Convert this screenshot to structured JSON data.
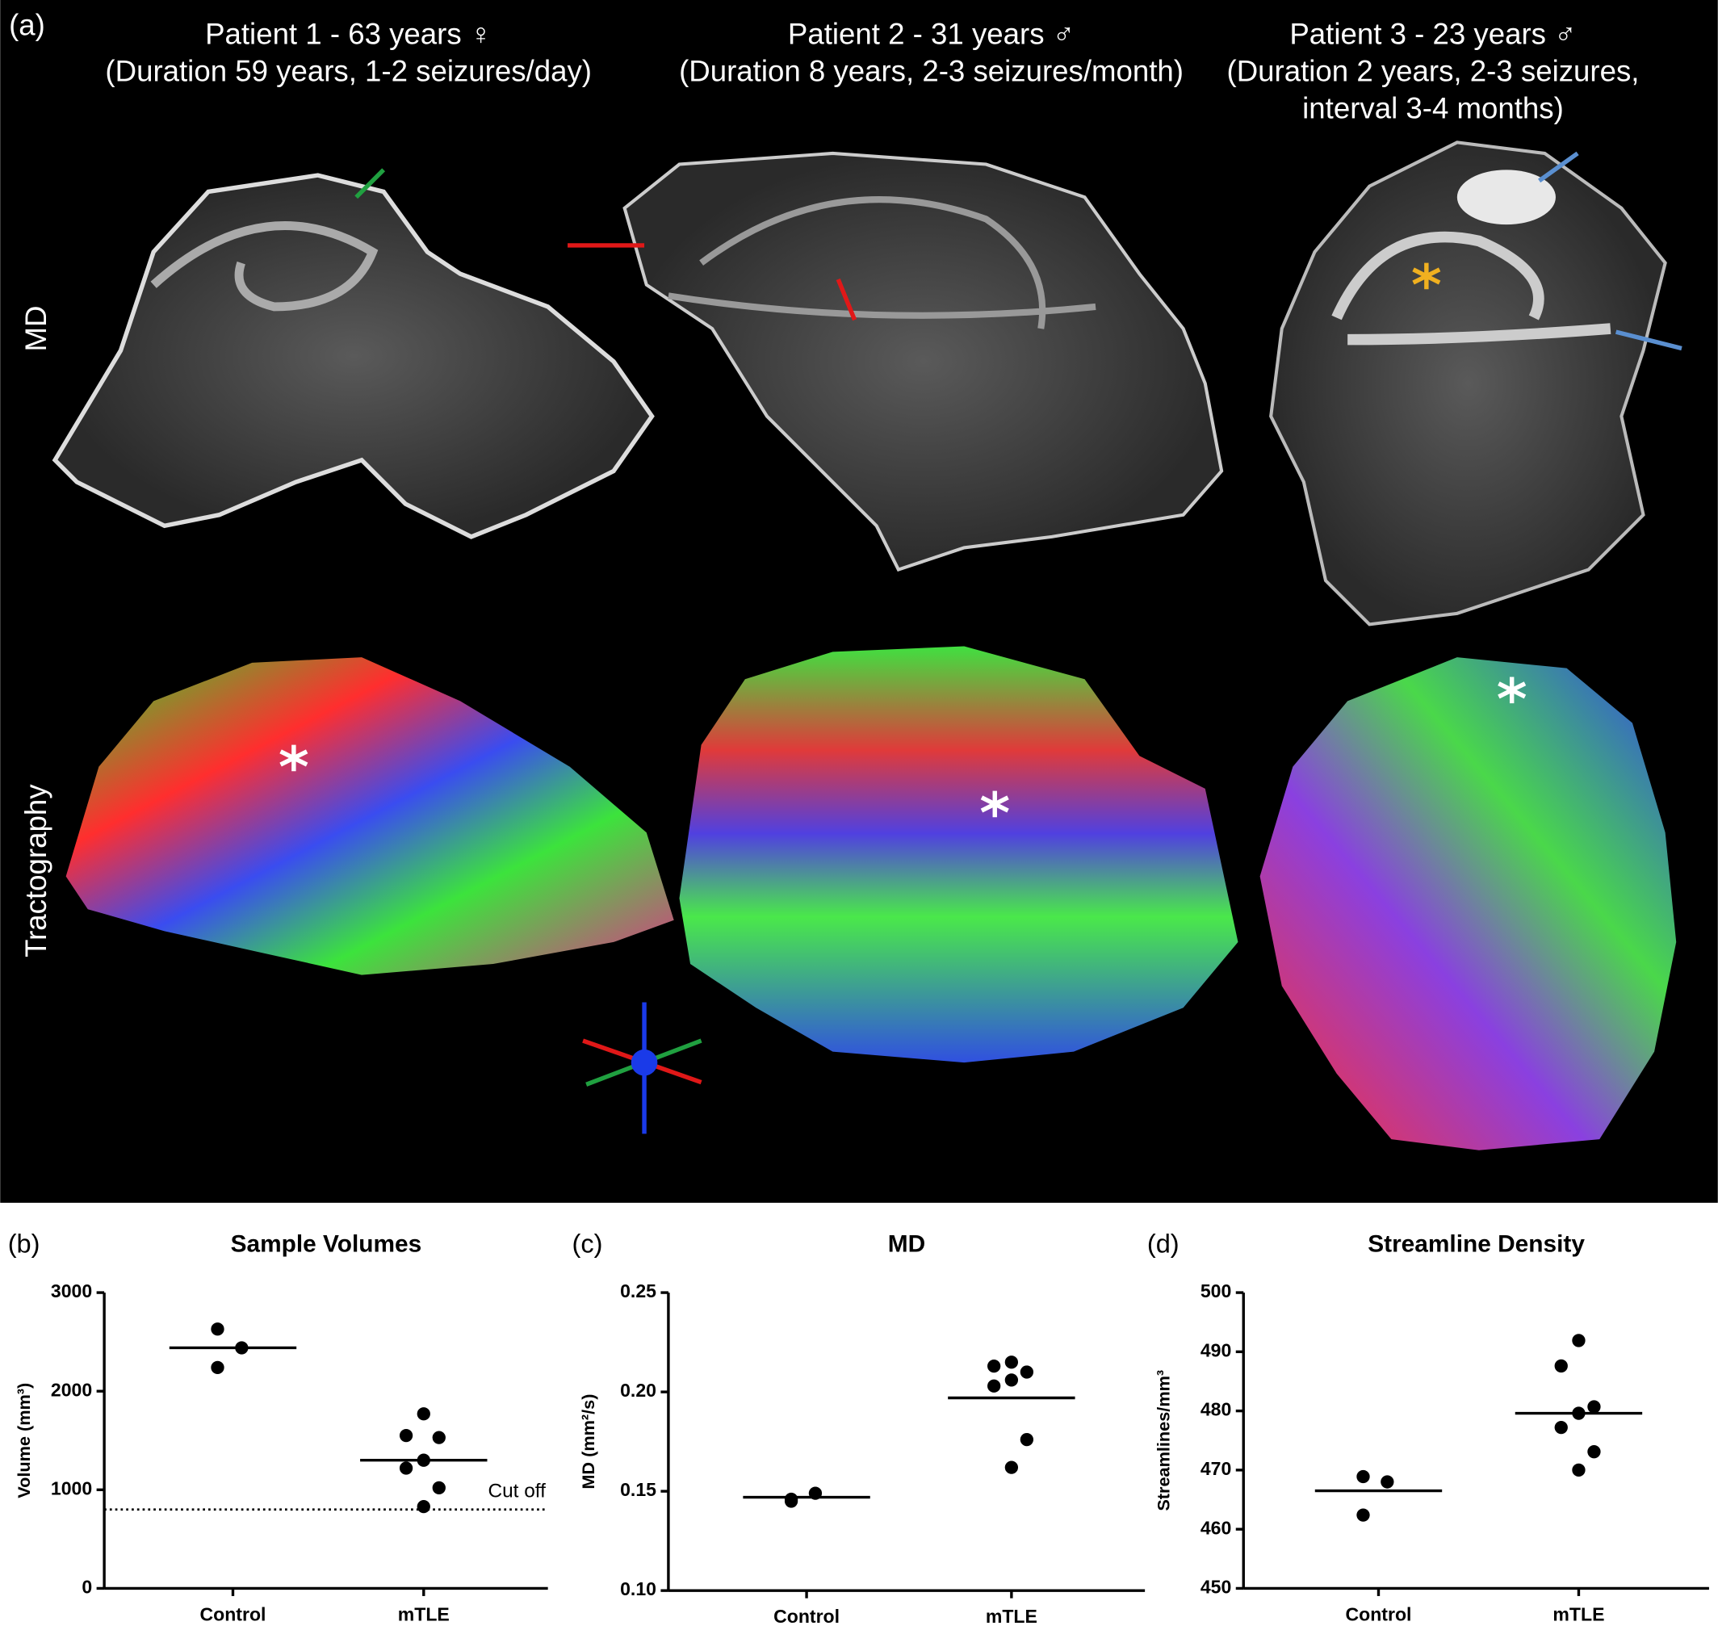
{
  "figure_a": {
    "panel_label": "(a)",
    "patients": [
      {
        "title": "Patient 1 - 63 years ♀",
        "details": [
          "(Duration 59 years, 1-2 seizures/day)"
        ]
      },
      {
        "title": "Patient 2 - 31 years ♂",
        "details": [
          "(Duration 8 years, 2-3 seizures/month)"
        ]
      },
      {
        "title": "Patient 3 - 23 years ♂",
        "details": [
          "(Duration 2 years, 2-3 seizures,",
          "interval 3-4 months)"
        ]
      }
    ],
    "row_labels": [
      "MD",
      "Tractography"
    ]
  },
  "chart_data": [
    {
      "type": "dot",
      "panel_label": "(b)",
      "title": "Sample Volumes",
      "y_label": "Volume (mm³)",
      "categories": [
        "Control",
        "mTLE"
      ],
      "values": [
        [
          2630,
          2440,
          2240
        ],
        [
          1770,
          1550,
          1530,
          1300,
          1220,
          1020,
          830
        ]
      ],
      "lines": [
        2440,
        1300
      ],
      "reference_line": {
        "value": 800,
        "label": "Cut off"
      },
      "ylim": [
        0,
        3000
      ],
      "yticks": [
        0,
        1000,
        2000,
        3000
      ],
      "color": "#000000"
    },
    {
      "type": "dot",
      "panel_label": "(c)",
      "title": "MD",
      "y_label": "MD (mm²/s)",
      "categories": [
        "Control",
        "mTLE"
      ],
      "values": [
        [
          0.145,
          0.149,
          0.146
        ],
        [
          0.215,
          0.213,
          0.21,
          0.206,
          0.203,
          0.176,
          0.162
        ]
      ],
      "lines": [
        0.147,
        0.197
      ],
      "ylim": [
        0.1,
        0.25
      ],
      "yticks": [
        {
          "value": 0.1,
          "label": "0.10"
        },
        0.15,
        {
          "value": 0.2,
          "label": "0.20"
        },
        0.25
      ],
      "color": "#000000"
    },
    {
      "type": "dot",
      "panel_label": "(d)",
      "title": "Streamline Density",
      "y_label": "Streamlines/mm³",
      "categories": [
        "Control",
        "mTLE"
      ],
      "values": [
        [
          468.9,
          468,
          462.4
        ],
        [
          491.9,
          487.6,
          480.7,
          479.6,
          477.2,
          473.1,
          470
        ]
      ],
      "lines": [
        466.5,
        479.6
      ],
      "ylim": [
        450,
        500
      ],
      "yticks": [
        450,
        460,
        470,
        480,
        490,
        500
      ],
      "color": "#000000"
    }
  ]
}
